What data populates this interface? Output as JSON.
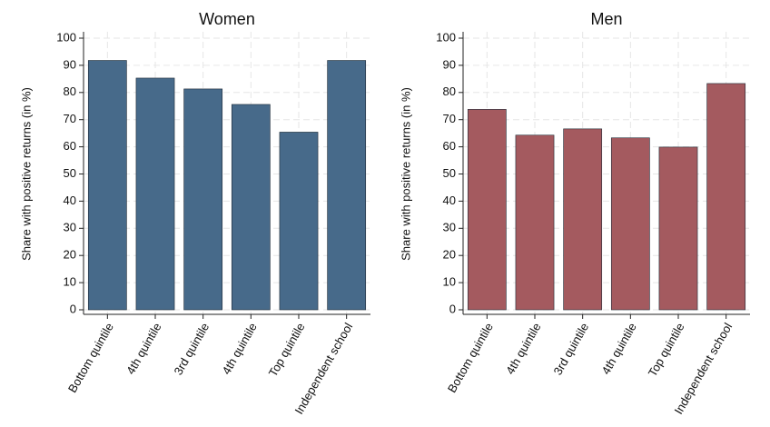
{
  "chart_data": [
    {
      "type": "bar",
      "title": "Women",
      "ylabel": "Share with positive returns (in %)",
      "categories": [
        "Bottom quintile",
        "4th quintile",
        "3rd quintile",
        "4th quintile",
        "Top quintile",
        "Independent school"
      ],
      "values": [
        91.8,
        85.3,
        81.3,
        75.6,
        65.4,
        91.8
      ],
      "color": "#476a8a",
      "ylim": [
        0,
        100
      ],
      "yticks": [
        0,
        10,
        20,
        30,
        40,
        50,
        60,
        70,
        80,
        90,
        100
      ],
      "grid": true
    },
    {
      "type": "bar",
      "title": "Men",
      "ylabel": "Share with positive returns (in %)",
      "categories": [
        "Bottom quintile",
        "4th quintile",
        "3rd quintile",
        "4th quintile",
        "Top quintile",
        "Independent school"
      ],
      "values": [
        73.8,
        64.3,
        66.6,
        63.3,
        59.9,
        83.3
      ],
      "color": "#a45a5f",
      "ylim": [
        0,
        100
      ],
      "yticks": [
        0,
        10,
        20,
        30,
        40,
        50,
        60,
        70,
        80,
        90,
        100
      ],
      "grid": true
    }
  ]
}
